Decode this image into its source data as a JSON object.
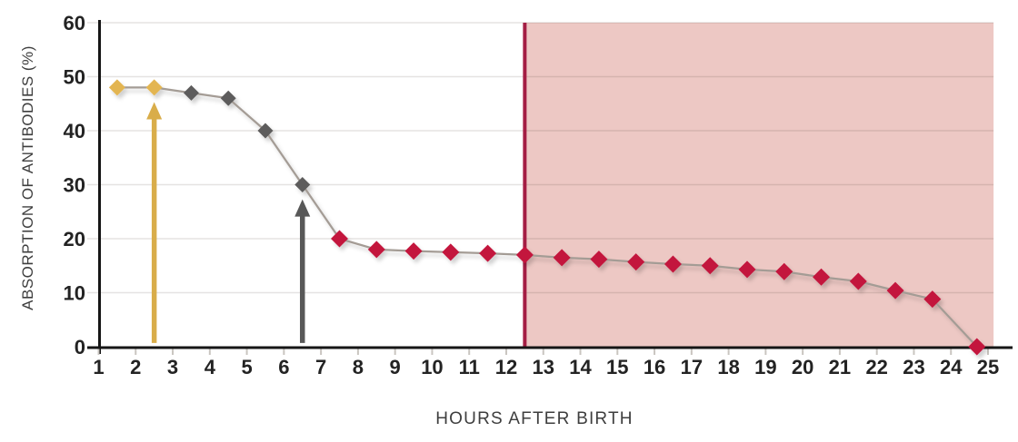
{
  "chart_data": {
    "type": "line",
    "title": "",
    "xlabel": "HOURS AFTER BIRTH",
    "ylabel": "ABSORPTION OF ANTIBODIES (%)",
    "xlim": [
      1,
      25
    ],
    "ylim": [
      0,
      60
    ],
    "x_ticks": [
      1,
      2,
      3,
      4,
      5,
      6,
      7,
      8,
      9,
      10,
      11,
      12,
      13,
      14,
      15,
      16,
      17,
      18,
      19,
      20,
      21,
      22,
      23,
      24,
      25
    ],
    "y_ticks": [
      0,
      10,
      20,
      30,
      40,
      50,
      60
    ],
    "grid": "horizontal",
    "legend": "none",
    "marker": "diamond",
    "line_color": "#a49c95",
    "axis_color": "#161616",
    "grid_color": "rgba(80,70,60,0.15)",
    "tick_mark_color": "#c9c5c0",
    "marker_colors": {
      "colostrum": "#e3b551",
      "declining": "#5d5c5b",
      "low": "#c3143d"
    },
    "marker_sizes": {
      "colostrum": 9,
      "declining": 8.5,
      "low": 9.5
    },
    "points": [
      {
        "x": 1.5,
        "y": 48,
        "group": "colostrum"
      },
      {
        "x": 2.5,
        "y": 48,
        "group": "colostrum"
      },
      {
        "x": 3.5,
        "y": 47,
        "group": "declining"
      },
      {
        "x": 4.5,
        "y": 46,
        "group": "declining"
      },
      {
        "x": 5.5,
        "y": 40,
        "group": "declining"
      },
      {
        "x": 6.5,
        "y": 30,
        "group": "declining"
      },
      {
        "x": 7.5,
        "y": 20,
        "group": "low"
      },
      {
        "x": 8.5,
        "y": 18,
        "group": "low"
      },
      {
        "x": 9.5,
        "y": 17.7,
        "group": "low"
      },
      {
        "x": 10.5,
        "y": 17.5,
        "group": "low"
      },
      {
        "x": 11.5,
        "y": 17.3,
        "group": "low"
      },
      {
        "x": 12.5,
        "y": 17,
        "group": "low"
      },
      {
        "x": 13.5,
        "y": 16.5,
        "group": "low"
      },
      {
        "x": 14.5,
        "y": 16.2,
        "group": "low"
      },
      {
        "x": 15.5,
        "y": 15.7,
        "group": "low"
      },
      {
        "x": 16.5,
        "y": 15.3,
        "group": "low"
      },
      {
        "x": 17.5,
        "y": 15,
        "group": "low"
      },
      {
        "x": 18.5,
        "y": 14.3,
        "group": "low"
      },
      {
        "x": 19.5,
        "y": 13.9,
        "group": "low"
      },
      {
        "x": 20.5,
        "y": 12.9,
        "group": "low"
      },
      {
        "x": 21.5,
        "y": 12.1,
        "group": "low"
      },
      {
        "x": 22.5,
        "y": 10.4,
        "group": "low"
      },
      {
        "x": 23.5,
        "y": 8.8,
        "group": "low"
      },
      {
        "x": 24.7,
        "y": 0,
        "group": "low"
      }
    ],
    "annotations": {
      "arrows": [
        {
          "name": "gold-arrow",
          "x": 2.5,
          "base_y": 0.7,
          "tip_y": 45.3,
          "color": "#d9ad4a"
        },
        {
          "name": "gray-arrow",
          "x": 6.5,
          "base_y": 0.7,
          "tip_y": 27.3,
          "color": "#585858"
        }
      ],
      "vline": {
        "x": 12.5,
        "color": "#a41e44",
        "width": 4
      },
      "shaded_region": {
        "x_start": 12.5,
        "x_end": 25.15,
        "y_start": 0,
        "y_end": 60,
        "color": "#edc8c4"
      }
    }
  }
}
